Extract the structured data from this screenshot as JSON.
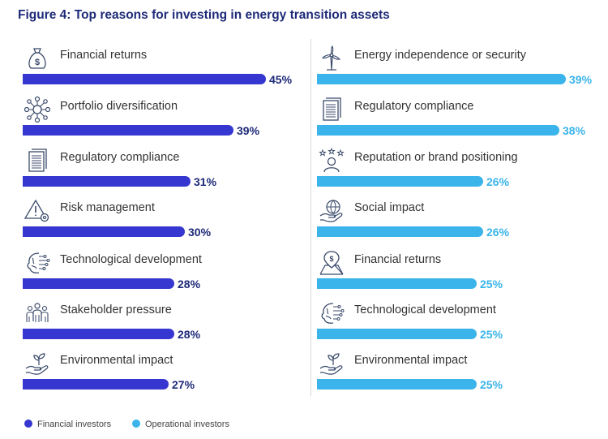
{
  "chart_data": [
    {
      "type": "bar",
      "title": "Figure 4: Top reasons for investing in energy transition assets",
      "series_name": "Financial investors",
      "color": "#3637d0",
      "categories": [
        "Financial returns",
        "Portfolio diversification",
        "Regulatory compliance",
        "Risk management",
        "Technological development",
        "Stakeholder pressure",
        "Environmental impact"
      ],
      "values": [
        45,
        39,
        31,
        30,
        28,
        28,
        27
      ],
      "value_labels": [
        "45%",
        "39%",
        "31%",
        "30%",
        "28%",
        "28%",
        "27%"
      ],
      "icons": [
        "money-bag-icon",
        "network-icon",
        "document-icon",
        "warning-gear-icon",
        "brain-circuit-icon",
        "people-group-icon",
        "hand-plant-icon"
      ],
      "unit": "%"
    },
    {
      "type": "bar",
      "series_name": "Operational investors",
      "color": "#3ab4ea",
      "categories": [
        "Energy independence or security",
        "Regulatory compliance",
        "Reputation or brand positioning",
        "Social impact",
        "Financial returns",
        "Technological development",
        "Environmental impact"
      ],
      "values": [
        39,
        38,
        26,
        26,
        25,
        25,
        25
      ],
      "value_labels": [
        "39%",
        "38%",
        "26%",
        "26%",
        "25%",
        "25%",
        "25%"
      ],
      "icons": [
        "wind-turbine-icon",
        "document-icon",
        "person-stars-icon",
        "hand-globe-icon",
        "map-pin-icon",
        "brain-circuit-icon",
        "hand-plant-icon"
      ],
      "unit": "%"
    }
  ],
  "legend": {
    "financial": {
      "label": "Financial investors",
      "color": "#3637d0"
    },
    "operational": {
      "label": "Operational investors",
      "color": "#3ab4ea"
    }
  },
  "text_color": {
    "financial_pct": "#1e2a78",
    "operational_pct": "#3ab4ea"
  }
}
